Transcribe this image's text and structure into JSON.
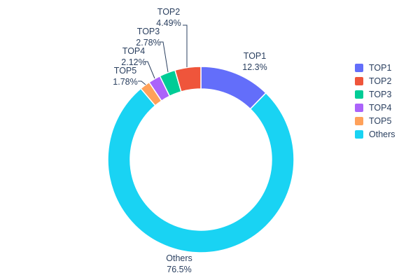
{
  "chart_data": {
    "type": "pie",
    "subtype": "donut",
    "title": "",
    "hole": 0.76,
    "legend_position": "right",
    "text_color": "#2a3f5f",
    "background": "#ffffff",
    "series": [
      {
        "label": "TOP1",
        "value": 12.3,
        "percent_label": "12.3%",
        "color": "#636EFA"
      },
      {
        "label": "TOP2",
        "value": 4.49,
        "percent_label": "4.49%",
        "color": "#EF553B"
      },
      {
        "label": "TOP3",
        "value": 2.78,
        "percent_label": "2.78%",
        "color": "#00CC96"
      },
      {
        "label": "TOP4",
        "value": 2.12,
        "percent_label": "2.12%",
        "color": "#AB63FA"
      },
      {
        "label": "TOP5",
        "value": 1.78,
        "percent_label": "1.78%",
        "color": "#FFA15A"
      },
      {
        "label": "Others",
        "value": 76.5,
        "percent_label": "76.5%",
        "color": "#19D3F3"
      }
    ],
    "display_order_clockwise": [
      "TOP1",
      "Others",
      "TOP5",
      "TOP4",
      "TOP3",
      "TOP2"
    ]
  }
}
